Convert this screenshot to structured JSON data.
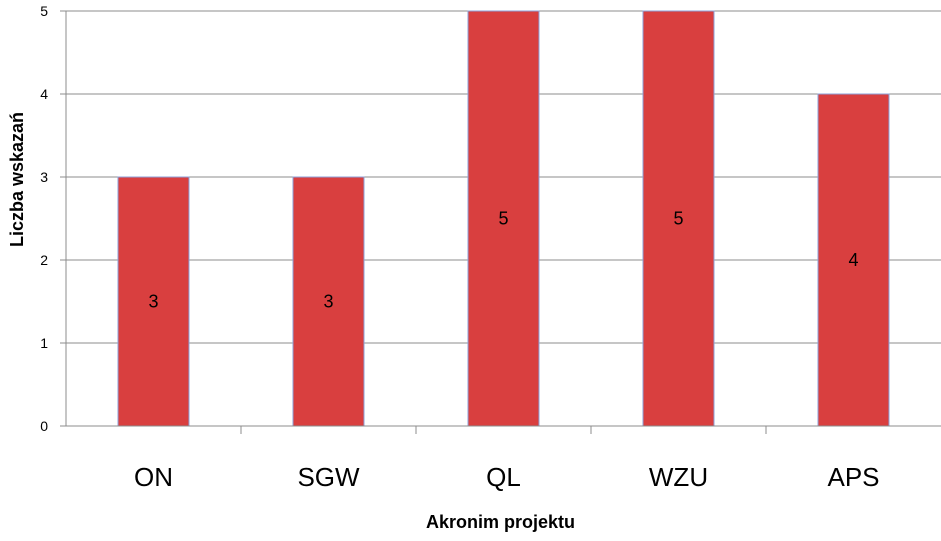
{
  "chart_data": {
    "type": "bar",
    "categories": [
      "ON",
      "SGW",
      "QL",
      "WZU",
      "APS"
    ],
    "values": [
      3,
      3,
      5,
      5,
      4
    ],
    "data_labels": [
      "3",
      "3",
      "5",
      "5",
      "4"
    ],
    "y_ticks": [
      "0",
      "1",
      "2",
      "3",
      "4",
      "5"
    ],
    "xlabel": "Akronim projektu",
    "ylabel": "Liczba wskazań",
    "ylim": [
      0,
      5
    ],
    "grid": true,
    "legend": "none",
    "bar_color": "#d93f3f",
    "bar_edge_color": "#8ca2d9",
    "grid_color": "#8c8c8c"
  }
}
